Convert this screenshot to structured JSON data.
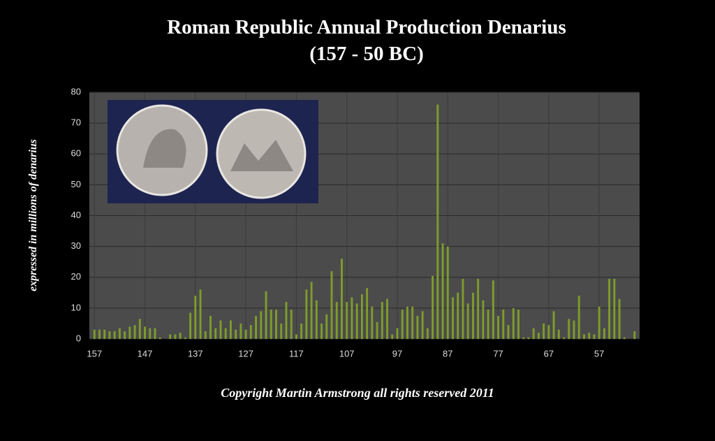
{
  "chart_data": {
    "type": "bar",
    "title": "Roman Republic Annual Production Denarius",
    "subtitle": "(157 - 50 BC)",
    "y_label": "expressed in millions of denarius",
    "footer": "Copyright Martin Armstrong all rights reserved 2011",
    "x": [
      157,
      156,
      155,
      154,
      153,
      152,
      151,
      150,
      149,
      148,
      147,
      146,
      145,
      144,
      143,
      142,
      141,
      140,
      139,
      138,
      137,
      136,
      135,
      134,
      133,
      132,
      131,
      130,
      129,
      128,
      127,
      126,
      125,
      124,
      123,
      122,
      121,
      120,
      119,
      118,
      117,
      116,
      115,
      114,
      113,
      112,
      111,
      110,
      109,
      108,
      107,
      106,
      105,
      104,
      103,
      102,
      101,
      100,
      99,
      98,
      97,
      96,
      95,
      94,
      93,
      92,
      91,
      90,
      89,
      88,
      87,
      86,
      85,
      84,
      83,
      82,
      81,
      80,
      79,
      78,
      77,
      76,
      75,
      74,
      73,
      72,
      71,
      70,
      69,
      68,
      67,
      66,
      65,
      64,
      63,
      62,
      61,
      60,
      59,
      58,
      57,
      56,
      55,
      54,
      53,
      52,
      51,
      50
    ],
    "values": [
      3,
      3,
      3,
      2.5,
      2.5,
      3.5,
      2.5,
      4,
      4.5,
      6.5,
      4,
      3.5,
      3.5,
      0.5,
      0,
      1.5,
      1.5,
      2,
      0.5,
      8.5,
      14,
      16,
      2.5,
      7.5,
      3.5,
      6,
      3.5,
      6,
      3,
      5,
      3,
      4.5,
      7.5,
      9,
      15.5,
      9.5,
      9.5,
      5,
      12,
      9.5,
      1.5,
      5,
      16,
      18.5,
      12.5,
      5,
      8,
      22,
      12,
      26,
      12,
      13.5,
      11.5,
      14.5,
      16.5,
      10.5,
      5.5,
      12,
      13,
      1.5,
      3.5,
      9.5,
      10.5,
      10.5,
      7.5,
      9,
      3.5,
      20.5,
      76,
      31,
      30,
      13.5,
      15,
      19.5,
      11.5,
      15,
      19.5,
      12.5,
      9.5,
      19,
      7.5,
      9.5,
      4.5,
      10,
      9.5,
      0.5,
      0.5,
      3.5,
      2,
      5,
      4.5,
      9,
      3,
      0.5,
      6.5,
      6,
      14,
      1.5,
      2,
      1.5,
      10.5,
      3.5,
      19.5,
      19.5,
      13,
      0.5,
      0,
      2.5
    ],
    "color": "#7f9c2c",
    "xlim": [
      158,
      49
    ],
    "xticks": [
      157,
      147,
      137,
      127,
      117,
      107,
      97,
      87,
      77,
      67,
      57
    ],
    "ylim": [
      0,
      80
    ],
    "yticks": [
      0,
      10,
      20,
      30,
      40,
      50,
      60,
      70,
      80
    ],
    "grid": true
  }
}
